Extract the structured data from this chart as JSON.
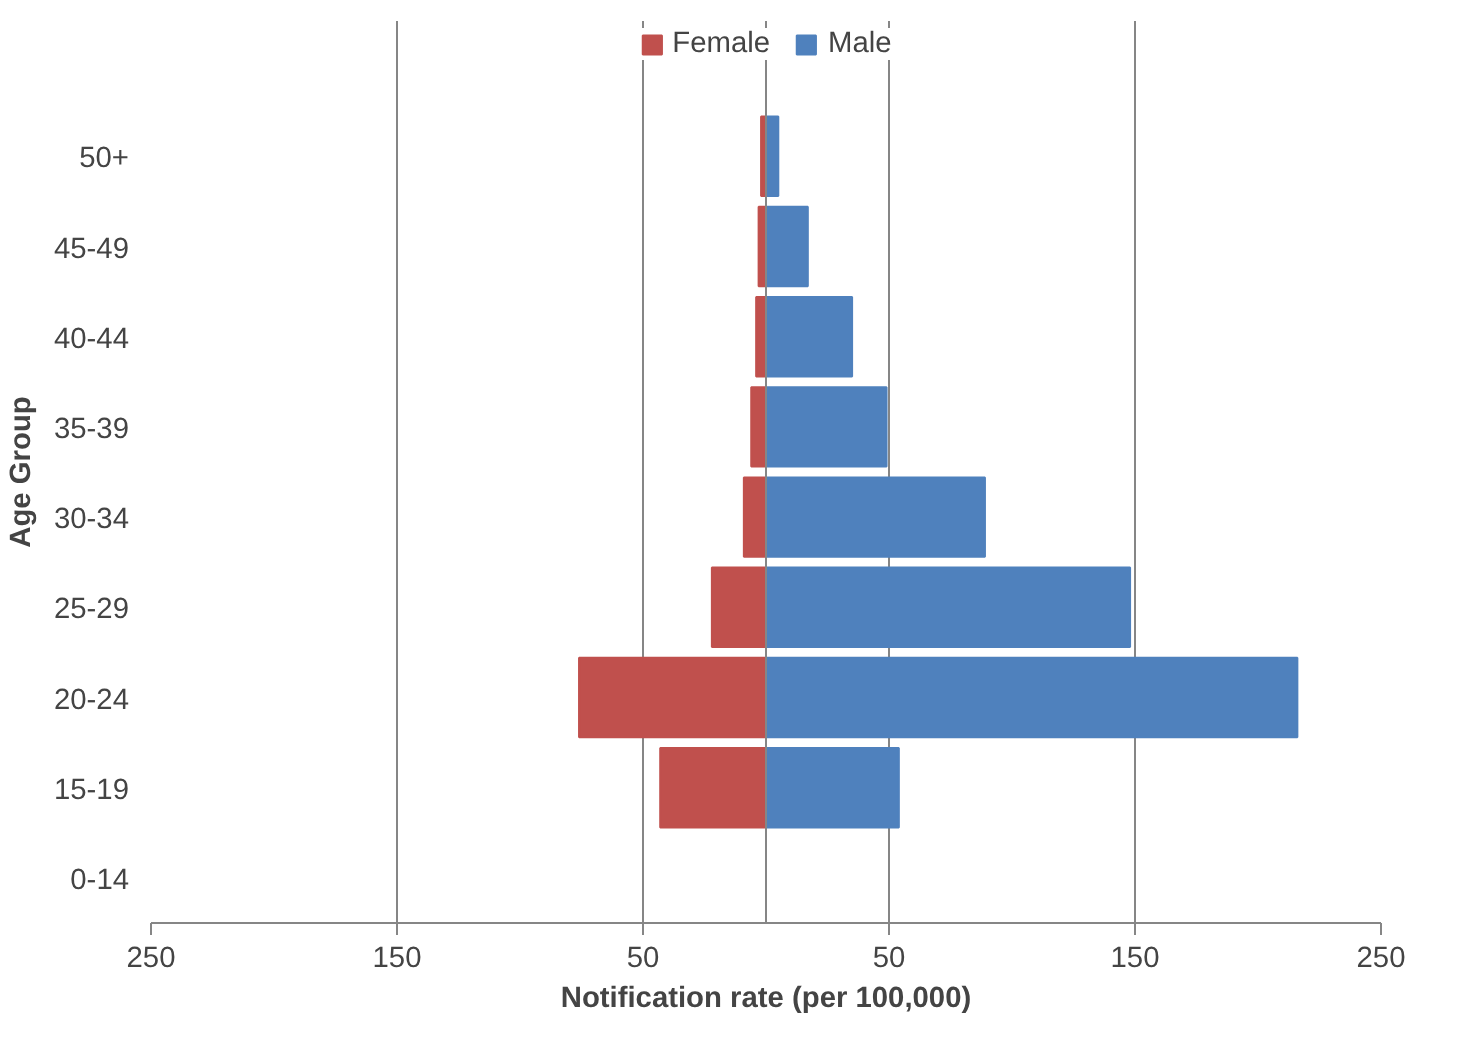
{
  "chart_data": {
    "type": "bar",
    "orientation": "horizontal",
    "stacked": true,
    "xlabel": "Notification rate (per 100,000)",
    "ylabel": "Age Group",
    "categories": [
      "50+",
      "45-49",
      "40-44",
      "35-39",
      "30-34",
      "25-29",
      "20-24",
      "15-19",
      "0-14"
    ],
    "series": [
      {
        "name": "Female",
        "color": "#c0504d",
        "values": [
          -2,
          -3,
          -4,
          -6,
          -9,
          -22,
          -76,
          -43,
          0
        ]
      },
      {
        "name": "Male",
        "color": "#4f81bd",
        "values": [
          5,
          17,
          35,
          49,
          89,
          148,
          216,
          54,
          0
        ]
      }
    ],
    "xlim": [
      -250,
      250
    ],
    "xticks": [
      {
        "value": -250,
        "label": "250"
      },
      {
        "value": -150,
        "label": "150"
      },
      {
        "value": -50,
        "label": "50"
      },
      {
        "value": 50,
        "label": "50"
      },
      {
        "value": 150,
        "label": "150"
      },
      {
        "value": 250,
        "label": "250"
      }
    ],
    "grid": "x",
    "legend": "top"
  }
}
